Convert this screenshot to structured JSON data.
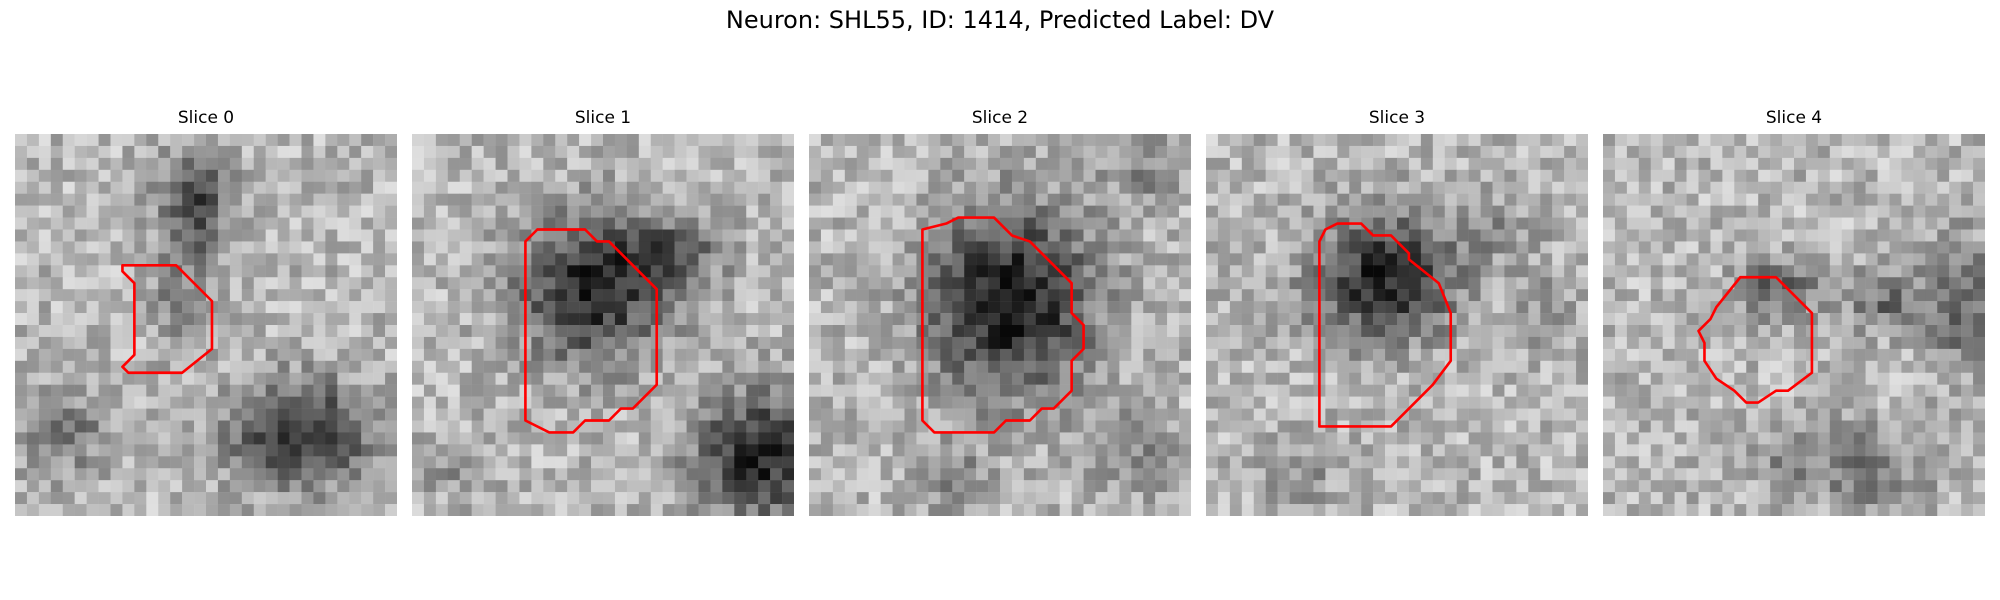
{
  "figure": {
    "title": "Neuron: SHL55, ID: 1414, Predicted Label: DV"
  },
  "panels": [
    {
      "title": "Slice 0"
    },
    {
      "title": "Slice 1"
    },
    {
      "title": "Slice 2"
    },
    {
      "title": "Slice 3"
    },
    {
      "title": "Slice 4"
    }
  ],
  "colors": {
    "contour": "#ff0000",
    "background": "#ffffff"
  }
}
